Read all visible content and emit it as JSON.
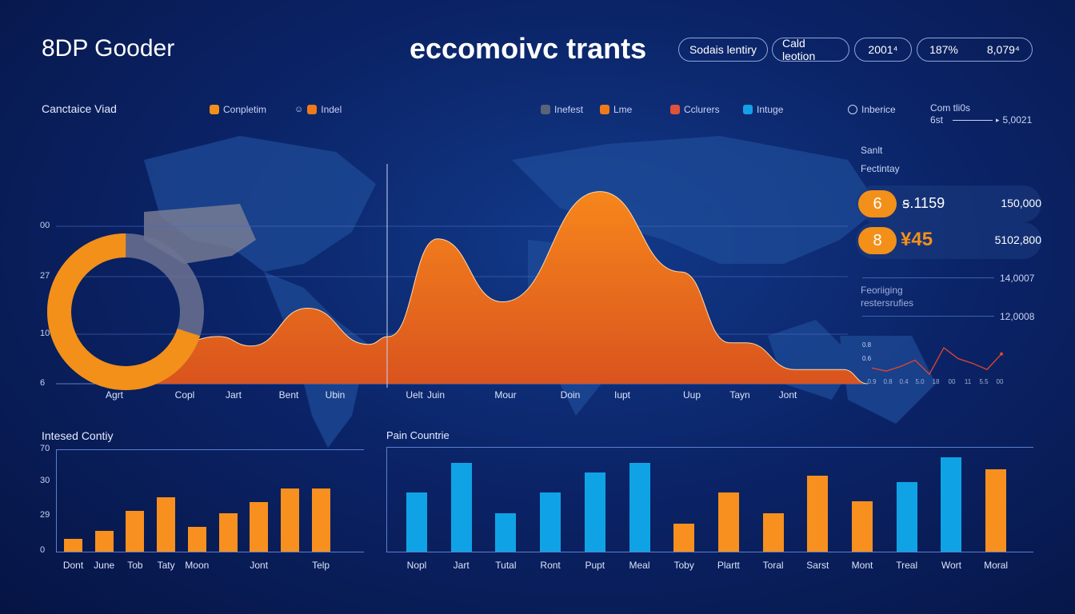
{
  "header": {
    "brand": "8DP Gooder",
    "title": "eccomoivc trants",
    "pills": [
      "Sodais lentiry",
      "Cald leotion",
      "2001⁴"
    ],
    "pill_pair": [
      "187%",
      "8,079⁴"
    ]
  },
  "top_chart": {
    "title": "Canctaice Viad",
    "legend_left": [
      {
        "label": "Conpletim",
        "color": "#f39019"
      },
      {
        "label": "Indel",
        "color": "#f07a1a"
      }
    ],
    "legend_right": [
      {
        "label": "Inefest",
        "color": "#5a6478"
      },
      {
        "label": "Lme",
        "color": "#f07a1a"
      },
      {
        "label": "Cclurers",
        "color": "#e0523a"
      },
      {
        "label": "Intuge",
        "color": "#14a0e8"
      },
      {
        "label": "Inberice",
        "color": "none"
      }
    ],
    "com": {
      "label": "Com tli0s",
      "sub": "6st",
      "value": "5,0021"
    }
  },
  "chart_data": [
    {
      "type": "area",
      "title": "Canctaice Viad",
      "yticks": [
        "00",
        "27",
        "10",
        "6"
      ],
      "ylim": [
        0,
        100
      ],
      "xlabels": [
        "Agrt",
        "Copl",
        "Jart",
        "Bent",
        "Ubin",
        "Uelt",
        "Juin",
        "Mour",
        "Doin",
        "Iupt",
        "Uup",
        "Tayn",
        "Jont"
      ],
      "series": [
        {
          "name": "Conpletim",
          "x": [
            8,
            20,
            24,
            31,
            38.5,
            41,
            47,
            55,
            67,
            77,
            83,
            85,
            91,
            97,
            100
          ],
          "y": [
            0,
            30,
            24,
            48,
            25,
            30,
            92,
            52,
            122,
            71,
            26,
            26,
            9,
            9,
            0
          ]
        }
      ],
      "donut": {
        "fraction": 0.7,
        "colors": [
          "#f39019",
          "#6c7290"
        ]
      }
    },
    {
      "type": "bar",
      "title": "Intesed Contiy",
      "yticks": [
        "70",
        "30",
        "29",
        "0"
      ],
      "ylim": [
        0,
        70
      ],
      "categories": [
        "Dont",
        "June",
        "Tob",
        "Taty",
        "Moon",
        "",
        "Jont",
        "",
        "Telp"
      ],
      "values": [
        9,
        14,
        28,
        37,
        17,
        26,
        34,
        43,
        43
      ],
      "color": "#f7901e"
    },
    {
      "type": "bar",
      "title": "Pain Countrie",
      "ylim": [
        0,
        120
      ],
      "categories": [
        "Nopl",
        "Jart",
        "Tutal",
        "Ront",
        "Pupt",
        "Meal",
        "Toby",
        "Plartt",
        "Toral",
        "Sarst",
        "Mont",
        "Treal",
        "Wort",
        "Moral"
      ],
      "values": [
        68,
        102,
        44,
        68,
        91,
        102,
        32,
        68,
        44,
        87,
        58,
        80,
        108,
        94
      ],
      "colors": [
        "b",
        "b",
        "b",
        "b",
        "b",
        "b",
        "o",
        "o",
        "o",
        "o",
        "o",
        "b",
        "b",
        "o"
      ]
    }
  ],
  "side": {
    "label1": "Sanlt",
    "label2": "Fectintay",
    "stats": [
      {
        "badge": "6",
        "value": "ꞩ.1159",
        "total": "150,000"
      },
      {
        "badge": "8",
        "value": "¥45",
        "total": "5102,800"
      }
    ],
    "line1": "14,0007",
    "label3": "Feoriiging",
    "label4": "restersrufies",
    "line2": "12,0008",
    "mini_labels": [
      "0.8",
      "0.6"
    ],
    "mini_x": [
      "0.9",
      "0.8",
      "0.4",
      "5.0",
      "18",
      "00",
      "11",
      "5.5",
      "00"
    ],
    "mini_series": [
      5,
      3,
      6,
      10,
      1,
      18,
      11,
      8,
      4,
      14
    ]
  },
  "colors": {
    "orange": "#f39019",
    "blue": "#0fa3e6",
    "bg": "#0b2468"
  }
}
